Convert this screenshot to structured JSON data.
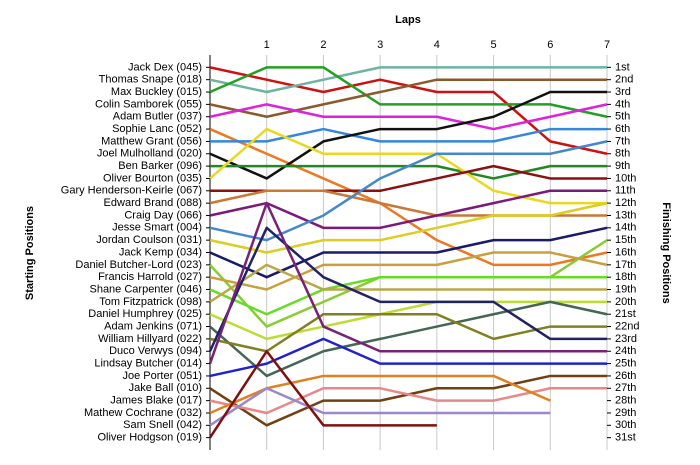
{
  "chart_data": {
    "type": "line",
    "title": "Laps",
    "ylabel": "Starting Positions",
    "y2label": "Finishing Positions",
    "x": [
      0,
      1,
      2,
      3,
      4,
      5,
      6,
      7
    ],
    "xlim": [
      0,
      7
    ],
    "xticks": [
      1,
      2,
      3,
      4,
      5,
      6,
      7
    ],
    "ylim": [
      0,
      32
    ],
    "y_inverted": true,
    "grid": true,
    "yticks": [
      {
        "value": 1,
        "label": "1st"
      },
      {
        "value": 2,
        "label": "2nd"
      },
      {
        "value": 3,
        "label": "3rd"
      },
      {
        "value": 4,
        "label": "4th"
      },
      {
        "value": 5,
        "label": "5th"
      },
      {
        "value": 6,
        "label": "6th"
      },
      {
        "value": 7,
        "label": "7th"
      },
      {
        "value": 8,
        "label": "8th"
      },
      {
        "value": 9,
        "label": "9th"
      },
      {
        "value": 10,
        "label": "10th"
      },
      {
        "value": 11,
        "label": "11th"
      },
      {
        "value": 12,
        "label": "12th"
      },
      {
        "value": 13,
        "label": "13th"
      },
      {
        "value": 14,
        "label": "14th"
      },
      {
        "value": 15,
        "label": "15th"
      },
      {
        "value": 16,
        "label": "16th"
      },
      {
        "value": 17,
        "label": "17th"
      },
      {
        "value": 18,
        "label": "18th"
      },
      {
        "value": 19,
        "label": "19th"
      },
      {
        "value": 20,
        "label": "20th"
      },
      {
        "value": 21,
        "label": "21st"
      },
      {
        "value": 22,
        "label": "22nd"
      },
      {
        "value": 23,
        "label": "23rd"
      },
      {
        "value": 24,
        "label": "24th"
      },
      {
        "value": 25,
        "label": "25th"
      },
      {
        "value": 26,
        "label": "26th"
      },
      {
        "value": 27,
        "label": "27th"
      },
      {
        "value": 28,
        "label": "28th"
      },
      {
        "value": 29,
        "label": "29th"
      },
      {
        "value": 30,
        "label": "30th"
      },
      {
        "value": 31,
        "label": "31st"
      }
    ],
    "series": [
      {
        "name": "Jack Dex (045)",
        "color": "#cc1111",
        "values": [
          1,
          2,
          3,
          2,
          3,
          3,
          7,
          8
        ]
      },
      {
        "name": "Thomas Snape (018)",
        "color": "#6db3a0",
        "values": [
          2,
          3,
          2,
          1,
          1,
          1,
          1,
          1
        ]
      },
      {
        "name": "Max Buckley (015)",
        "color": "#22a022",
        "values": [
          3,
          1,
          1,
          4,
          4,
          4,
          4,
          5
        ]
      },
      {
        "name": "Colin Samborek (055)",
        "color": "#8b5a2b",
        "values": [
          4,
          5,
          4,
          3,
          2,
          2,
          2,
          2
        ]
      },
      {
        "name": "Adam Butler (037)",
        "color": "#dd22dd",
        "values": [
          5,
          4,
          5,
          5,
          5,
          6,
          5,
          4
        ]
      },
      {
        "name": "Sophie Lanc (052)",
        "color": "#ee7722",
        "values": [
          6,
          8,
          10,
          12,
          15,
          17,
          17,
          16
        ]
      },
      {
        "name": "Matthew Grant (056)",
        "color": "#3388dd",
        "values": [
          7,
          7,
          6,
          7,
          7,
          7,
          6,
          6
        ]
      },
      {
        "name": "Joel Mulholland (020)",
        "color": "#111111",
        "values": [
          8,
          10,
          7,
          6,
          6,
          5,
          3,
          3
        ]
      },
      {
        "name": "Ben Barker (096)",
        "color": "#228822",
        "values": [
          9,
          9,
          9,
          9,
          9,
          10,
          9,
          9
        ]
      },
      {
        "name": "Oliver Bourton (035)",
        "color": "#e8d820",
        "values": [
          10,
          6,
          8,
          8,
          8,
          11,
          12,
          12
        ]
      },
      {
        "name": "Gary Henderson-Keirle (067)",
        "color": "#8b1010",
        "values": [
          11,
          11,
          11,
          11,
          10,
          9,
          10,
          10
        ]
      },
      {
        "name": "Edward Brand (088)",
        "color": "#cc7733",
        "values": [
          12,
          11,
          11,
          12,
          13,
          13,
          13,
          13
        ]
      },
      {
        "name": "Craig Day (066)",
        "color": "#7a1a7a",
        "values": [
          13,
          12,
          14,
          14,
          13,
          12,
          11,
          11
        ]
      },
      {
        "name": "Jesse Smart (004)",
        "color": "#4488cc",
        "values": [
          14,
          15,
          13,
          10,
          8,
          8,
          8,
          7
        ]
      },
      {
        "name": "Jordan Coulson (031)",
        "color": "#ddcc22",
        "values": [
          15,
          16,
          15,
          15,
          14,
          13,
          13,
          12
        ]
      },
      {
        "name": "Jack Kemp (034)",
        "color": "#1a1a6a",
        "values": [
          16,
          18,
          16,
          16,
          16,
          15,
          15,
          14
        ]
      },
      {
        "name": "Daniel Butcher-Lord (023)",
        "color": "#88cc33",
        "values": [
          17,
          22,
          20,
          18,
          18,
          18,
          18,
          15
        ]
      },
      {
        "name": "Francis Harrold (027)",
        "color": "#c8a040",
        "values": [
          18,
          19,
          17,
          17,
          17,
          16,
          16,
          17
        ]
      },
      {
        "name": "Shane Carpenter (046)",
        "color": "#66dd22",
        "values": [
          19,
          21,
          19,
          18,
          18,
          18,
          18,
          18
        ]
      },
      {
        "name": "Tom Fitzpatrick (098)",
        "color": "#b8a848",
        "values": [
          20,
          17,
          19,
          19,
          19,
          19,
          19,
          19
        ]
      },
      {
        "name": "Daniel Humphrey (025)",
        "color": "#bbdd33",
        "values": [
          21,
          23,
          22,
          21,
          20,
          20,
          20,
          20
        ]
      },
      {
        "name": "Adam Jenkins (071)",
        "color": "#446655",
        "values": [
          22,
          26,
          24,
          23,
          22,
          21,
          20,
          21
        ]
      },
      {
        "name": "William Hillyard (022)",
        "color": "#808020",
        "values": [
          23,
          24,
          21,
          21,
          21,
          23,
          22,
          22
        ]
      },
      {
        "name": "Duco Verwys (094)",
        "color": "#222266",
        "values": [
          24,
          14,
          18,
          20,
          20,
          20,
          23,
          23
        ]
      },
      {
        "name": "Lindsay Butcher (014)",
        "color": "#772277",
        "values": [
          25,
          12,
          22,
          24,
          24,
          24,
          24,
          24
        ]
      },
      {
        "name": "Joe Porter (051)",
        "color": "#2222cc",
        "values": [
          26,
          25,
          23,
          25,
          25,
          25,
          25,
          25
        ]
      },
      {
        "name": "Jake Ball (010)",
        "color": "#704010",
        "values": [
          27,
          30,
          28,
          28,
          27,
          27,
          26,
          26
        ]
      },
      {
        "name": "James Blake (017)",
        "color": "#e88888",
        "values": [
          28,
          29,
          27,
          27,
          28,
          28,
          27,
          27
        ]
      },
      {
        "name": "Mathew Cochrane (032)",
        "color": "#e08020",
        "values": [
          29,
          27,
          26,
          26,
          26,
          26,
          28,
          null
        ]
      },
      {
        "name": "Sam Snell (042)",
        "color": "#9988cc",
        "values": [
          30,
          27,
          29,
          29,
          29,
          29,
          29,
          null
        ]
      },
      {
        "name": "Oliver Hodgson (019)",
        "color": "#801010",
        "values": [
          31,
          24,
          30,
          30,
          30,
          null,
          null,
          null
        ]
      }
    ]
  }
}
